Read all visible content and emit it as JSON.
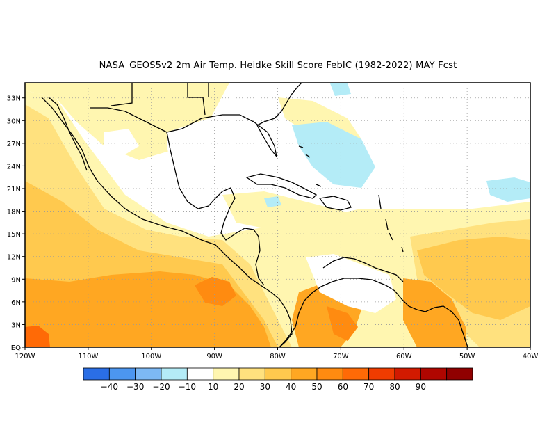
{
  "title": "NASA_GEOS5v2  2m Air Temp. Heidke Skill Score FebIC (1982-2022) MAY Fcst",
  "map": {
    "lon_range": [
      -120,
      -40
    ],
    "lat_range": [
      0,
      35
    ],
    "x_ticks": [
      "120W",
      "110W",
      "100W",
      "90W",
      "80W",
      "70W",
      "60W",
      "50W",
      "40W"
    ],
    "y_ticks": [
      "EQ",
      "3N",
      "6N",
      "9N",
      "12N",
      "15N",
      "18N",
      "21N",
      "24N",
      "27N",
      "30N",
      "33N"
    ],
    "gridlines": "dotted"
  },
  "colorbar": {
    "colors": [
      "#2a6ee6",
      "#4c96f0",
      "#7db9f5",
      "#b4ecf7",
      "#ffffff",
      "#fff6b0",
      "#ffe17e",
      "#ffc94e",
      "#ffa722",
      "#ff8b10",
      "#ff6a06",
      "#f03c00",
      "#d21a00",
      "#b00600",
      "#900000"
    ],
    "labels": [
      "-40",
      "-30",
      "-20",
      "-10",
      "10",
      "20",
      "30",
      "40",
      "50",
      "60",
      "70",
      "80",
      "90"
    ]
  }
}
